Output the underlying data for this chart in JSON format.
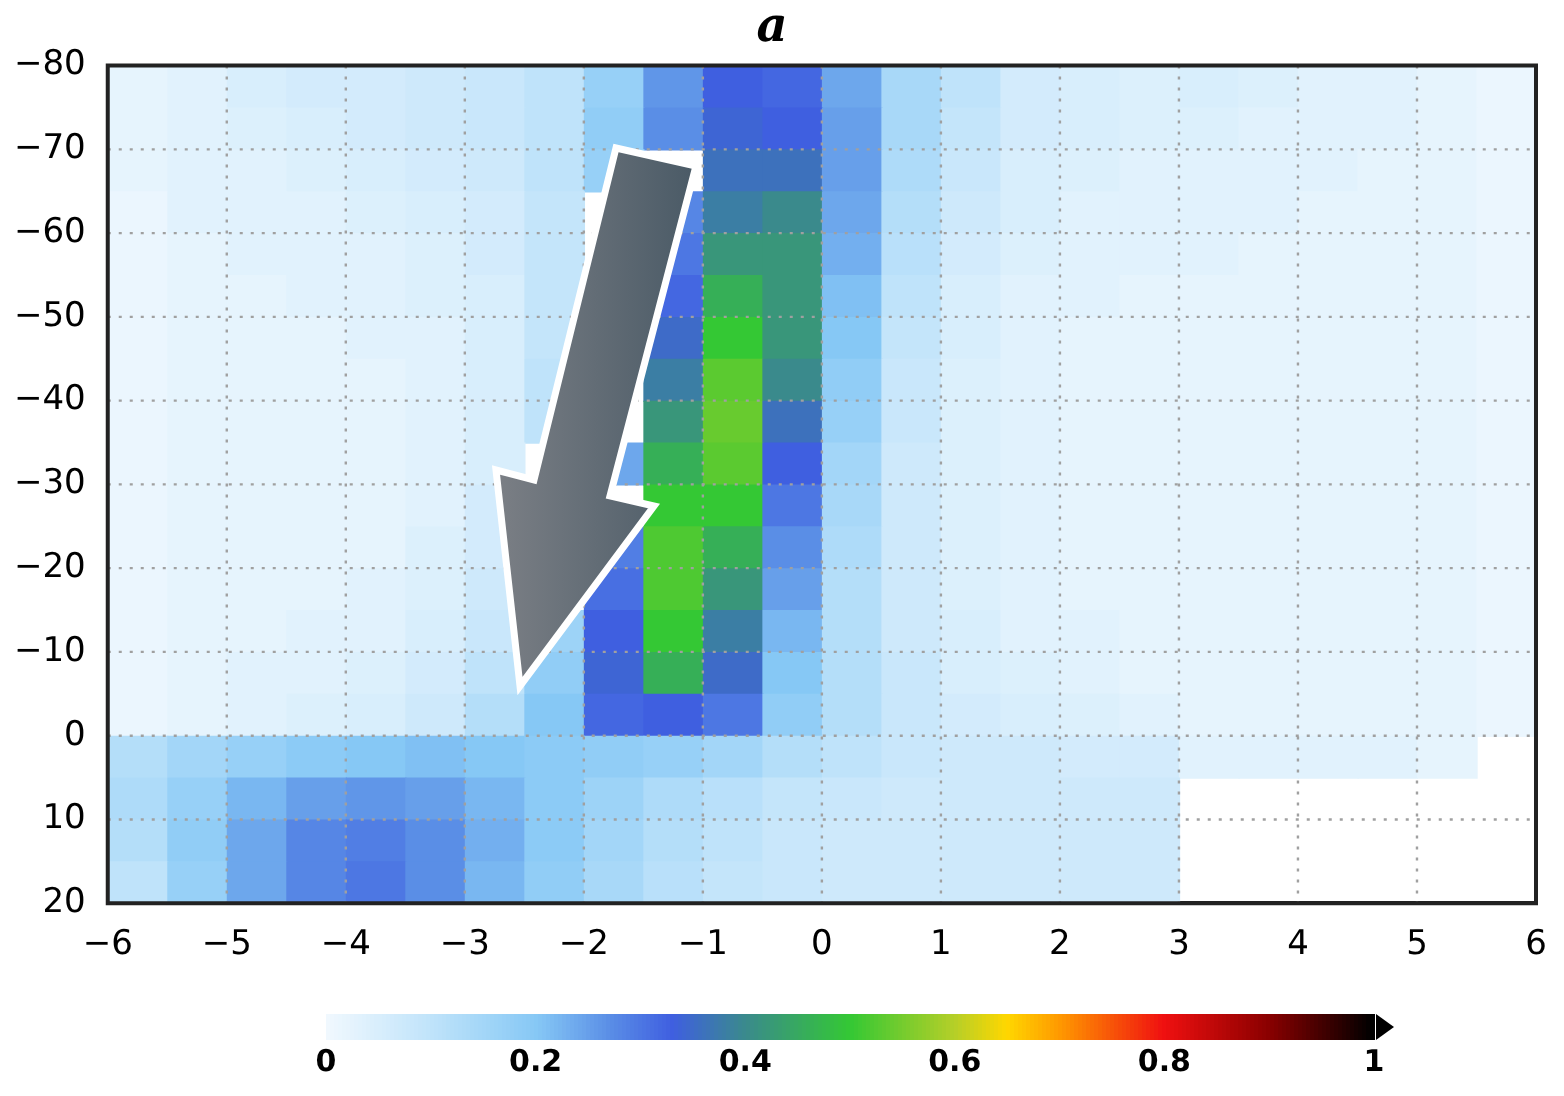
{
  "chart_data": {
    "type": "heatmap",
    "title": "a",
    "xlim": [
      -6,
      6
    ],
    "xticks": [
      {
        "value": -6,
        "label": "−6"
      },
      {
        "value": -5,
        "label": "−5"
      },
      {
        "value": -4,
        "label": "−4"
      },
      {
        "value": -3,
        "label": "−3"
      },
      {
        "value": -2,
        "label": "−2"
      },
      {
        "value": -1,
        "label": "−1"
      },
      0,
      1,
      2,
      3,
      4,
      5,
      6
    ],
    "ylim": [
      20,
      -80
    ],
    "yticks": [
      {
        "value": -80,
        "label": "−80"
      },
      {
        "value": -70,
        "label": "−70"
      },
      {
        "value": -60,
        "label": "−60"
      },
      {
        "value": -50,
        "label": "−50"
      },
      {
        "value": -40,
        "label": "−40"
      },
      {
        "value": -30,
        "label": "−30"
      },
      {
        "value": -20,
        "label": "−20"
      },
      {
        "value": -10,
        "label": "−10"
      },
      0,
      10,
      20
    ],
    "grid": true,
    "clim": [
      0,
      1
    ],
    "cticks": [
      0,
      0.2,
      0.4,
      0.6,
      0.8,
      1
    ],
    "cells": [
      [
        0.02,
        0.03,
        0.05,
        0.06,
        0.06,
        0.07,
        0.08,
        0.1,
        0.17,
        0.26,
        0.33,
        0.32,
        0.24,
        0.14,
        0.1,
        0.06,
        0.05,
        0.04,
        0.05,
        0.04,
        0.03,
        0.03,
        0.02,
        0.01
      ],
      [
        0.02,
        0.03,
        0.04,
        0.05,
        0.06,
        0.07,
        0.08,
        0.1,
        0.18,
        0.27,
        0.34,
        0.33,
        0.25,
        0.14,
        0.09,
        0.06,
        0.05,
        0.04,
        0.04,
        0.03,
        0.03,
        0.03,
        0.02,
        0.01
      ],
      [
        0.02,
        0.03,
        0.03,
        0.04,
        0.05,
        0.06,
        0.07,
        0.1,
        0.17,
        null,
        0.36,
        0.36,
        0.25,
        0.13,
        0.08,
        0.05,
        0.04,
        0.03,
        0.03,
        0.03,
        0.03,
        0.02,
        0.02,
        0.01
      ],
      [
        0.01,
        0.03,
        0.03,
        0.03,
        0.04,
        0.05,
        0.06,
        0.09,
        null,
        0.28,
        0.38,
        0.4,
        0.24,
        0.12,
        0.07,
        0.05,
        0.03,
        0.03,
        0.03,
        0.03,
        0.02,
        0.02,
        0.02,
        0.01
      ],
      [
        0.01,
        0.02,
        0.03,
        0.03,
        0.03,
        0.04,
        0.06,
        0.09,
        null,
        0.3,
        0.42,
        0.42,
        0.23,
        0.11,
        0.06,
        0.04,
        0.03,
        0.03,
        0.03,
        0.02,
        0.02,
        0.02,
        0.02,
        0.01
      ],
      [
        0.01,
        0.02,
        0.02,
        0.03,
        0.03,
        0.04,
        0.05,
        0.09,
        null,
        0.32,
        0.46,
        0.42,
        0.21,
        0.1,
        0.05,
        0.03,
        0.03,
        0.02,
        0.02,
        0.02,
        0.02,
        0.02,
        0.02,
        0.01
      ],
      [
        0.01,
        0.02,
        0.02,
        0.02,
        0.03,
        0.03,
        0.05,
        0.09,
        null,
        0.35,
        0.5,
        0.42,
        0.2,
        0.09,
        0.05,
        0.03,
        0.02,
        0.02,
        0.02,
        0.02,
        0.02,
        0.02,
        0.02,
        0.01
      ],
      [
        0.01,
        0.02,
        0.02,
        0.02,
        0.02,
        0.03,
        0.05,
        0.1,
        null,
        0.38,
        0.53,
        0.4,
        0.18,
        0.08,
        0.04,
        0.03,
        0.02,
        0.02,
        0.02,
        0.02,
        0.02,
        0.02,
        0.02,
        0.01
      ],
      [
        0.01,
        0.02,
        0.02,
        0.02,
        0.02,
        0.03,
        0.05,
        0.1,
        null,
        0.42,
        0.54,
        0.36,
        0.17,
        0.08,
        0.04,
        0.03,
        0.02,
        0.02,
        0.02,
        0.02,
        0.02,
        0.02,
        0.02,
        0.01
      ],
      [
        0.01,
        0.02,
        0.02,
        0.02,
        0.02,
        0.03,
        0.05,
        null,
        0.24,
        0.46,
        0.53,
        0.33,
        0.15,
        0.07,
        0.04,
        0.03,
        0.02,
        0.02,
        0.02,
        0.02,
        0.02,
        0.02,
        0.02,
        0.01
      ],
      [
        0.01,
        0.02,
        0.02,
        0.02,
        0.02,
        0.03,
        0.06,
        null,
        null,
        0.5,
        0.5,
        0.3,
        0.14,
        0.07,
        0.04,
        0.03,
        0.02,
        0.02,
        0.02,
        0.02,
        0.02,
        0.02,
        0.02,
        0.01
      ],
      [
        0.01,
        0.02,
        0.02,
        0.02,
        0.02,
        0.04,
        0.06,
        null,
        0.29,
        0.52,
        0.46,
        0.27,
        0.13,
        0.07,
        0.04,
        0.03,
        0.02,
        0.02,
        0.02,
        0.02,
        0.02,
        0.02,
        0.02,
        0.01
      ],
      [
        0.01,
        0.02,
        0.02,
        0.02,
        0.03,
        0.04,
        0.07,
        null,
        0.31,
        0.52,
        0.42,
        0.25,
        0.12,
        0.07,
        0.04,
        0.03,
        0.02,
        0.02,
        0.02,
        0.02,
        0.02,
        0.02,
        0.02,
        0.01
      ],
      [
        0.01,
        0.02,
        0.02,
        0.03,
        0.03,
        0.05,
        0.08,
        0.16,
        0.33,
        0.5,
        0.38,
        0.22,
        0.12,
        0.07,
        0.05,
        0.03,
        0.03,
        0.02,
        0.02,
        0.02,
        0.02,
        0.02,
        0.02,
        0.01
      ],
      [
        0.01,
        0.02,
        0.03,
        0.03,
        0.04,
        0.06,
        0.1,
        0.18,
        0.34,
        0.46,
        0.35,
        0.2,
        0.12,
        0.08,
        0.05,
        0.04,
        0.03,
        0.02,
        0.02,
        0.02,
        0.02,
        0.02,
        0.02,
        0.01
      ],
      [
        0.01,
        0.02,
        0.03,
        0.04,
        0.05,
        0.07,
        0.12,
        0.2,
        0.32,
        0.33,
        0.3,
        0.18,
        0.12,
        0.08,
        0.06,
        0.05,
        0.04,
        0.03,
        0.02,
        0.02,
        0.02,
        0.02,
        0.02,
        0.01
      ],
      [
        0.12,
        0.15,
        0.17,
        0.19,
        0.2,
        0.21,
        0.2,
        0.19,
        0.18,
        0.17,
        0.15,
        0.12,
        0.1,
        0.08,
        0.07,
        0.07,
        0.06,
        0.06,
        0.03,
        0.03,
        0.03,
        0.03,
        0.02,
        null
      ],
      [
        0.13,
        0.17,
        0.22,
        0.25,
        0.26,
        0.25,
        0.22,
        0.19,
        0.16,
        0.13,
        0.11,
        0.09,
        0.08,
        0.07,
        0.07,
        0.07,
        0.07,
        0.07,
        null,
        null,
        null,
        null,
        null,
        null
      ],
      [
        0.12,
        0.18,
        0.24,
        0.28,
        0.29,
        0.27,
        0.23,
        0.19,
        0.15,
        0.12,
        0.1,
        0.08,
        0.07,
        0.07,
        0.07,
        0.07,
        0.07,
        0.07,
        null,
        null,
        null,
        null,
        null,
        null
      ],
      [
        0.1,
        0.17,
        0.24,
        0.28,
        0.3,
        0.27,
        0.22,
        0.18,
        0.14,
        0.11,
        0.09,
        0.08,
        0.07,
        0.07,
        0.07,
        0.07,
        0.07,
        0.07,
        null,
        null,
        null,
        null,
        null,
        null
      ]
    ]
  }
}
